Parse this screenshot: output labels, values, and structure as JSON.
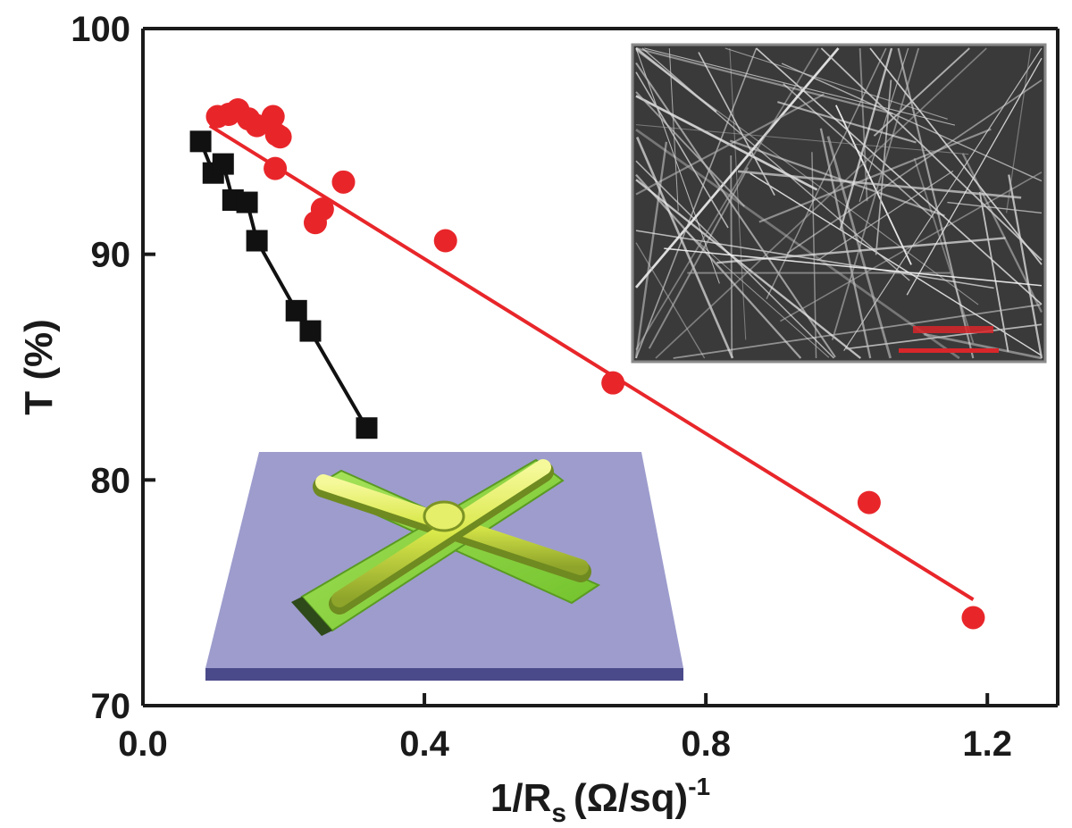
{
  "chart_data": {
    "type": "scatter",
    "xlabel": "1/R",
    "xlabel_subscript": "s",
    "xlabel_unit": "(Ω/sq)",
    "xlabel_exponent": "-1",
    "ylabel": "T (%)",
    "xlim": [
      0.0,
      1.3
    ],
    "ylim": [
      70,
      100
    ],
    "x_ticks": [
      {
        "value": 0.0,
        "label": "0.0"
      },
      {
        "value": 0.4,
        "label": "0.4"
      },
      {
        "value": 0.8,
        "label": "0.8"
      },
      {
        "value": 1.2,
        "label": "1.2"
      }
    ],
    "y_ticks": [
      {
        "value": 70,
        "label": "70"
      },
      {
        "value": 80,
        "label": "80"
      },
      {
        "value": 90,
        "label": "90"
      },
      {
        "value": 100,
        "label": "100"
      }
    ],
    "grid": false,
    "series": [
      {
        "marker": "square",
        "color": "#111111",
        "line": "connected",
        "x": [
          0.082,
          0.1,
          0.114,
          0.128,
          0.148,
          0.162,
          0.218,
          0.238,
          0.318
        ],
        "y": [
          95.0,
          93.6,
          94.0,
          92.4,
          92.3,
          90.6,
          87.5,
          86.6,
          82.3
        ]
      },
      {
        "marker": "circle",
        "color": "#e8262a",
        "line": "linear-fit",
        "fit": {
          "x": [
            0.095,
            1.18
          ],
          "y": [
            95.7,
            74.7
          ]
        },
        "x": [
          0.106,
          0.122,
          0.135,
          0.15,
          0.162,
          0.185,
          0.19,
          0.195,
          0.188,
          0.245,
          0.255,
          0.285,
          0.43,
          0.668,
          1.032,
          1.18
        ],
        "y": [
          96.1,
          96.2,
          96.4,
          96.0,
          95.7,
          96.1,
          95.3,
          95.2,
          93.8,
          91.4,
          92.0,
          93.2,
          90.6,
          84.3,
          79.0,
          73.9
        ]
      }
    ],
    "insets": [
      {
        "kind": "sem-micrograph",
        "position": "top-right",
        "scale_bar_color": "#d8262a"
      },
      {
        "kind": "3d-junction-schematic",
        "position": "bottom-left",
        "colors": {
          "substrate": "#9d9ccd",
          "base_strip": "#8bd43c",
          "wire": "#d9e84a"
        }
      }
    ]
  }
}
